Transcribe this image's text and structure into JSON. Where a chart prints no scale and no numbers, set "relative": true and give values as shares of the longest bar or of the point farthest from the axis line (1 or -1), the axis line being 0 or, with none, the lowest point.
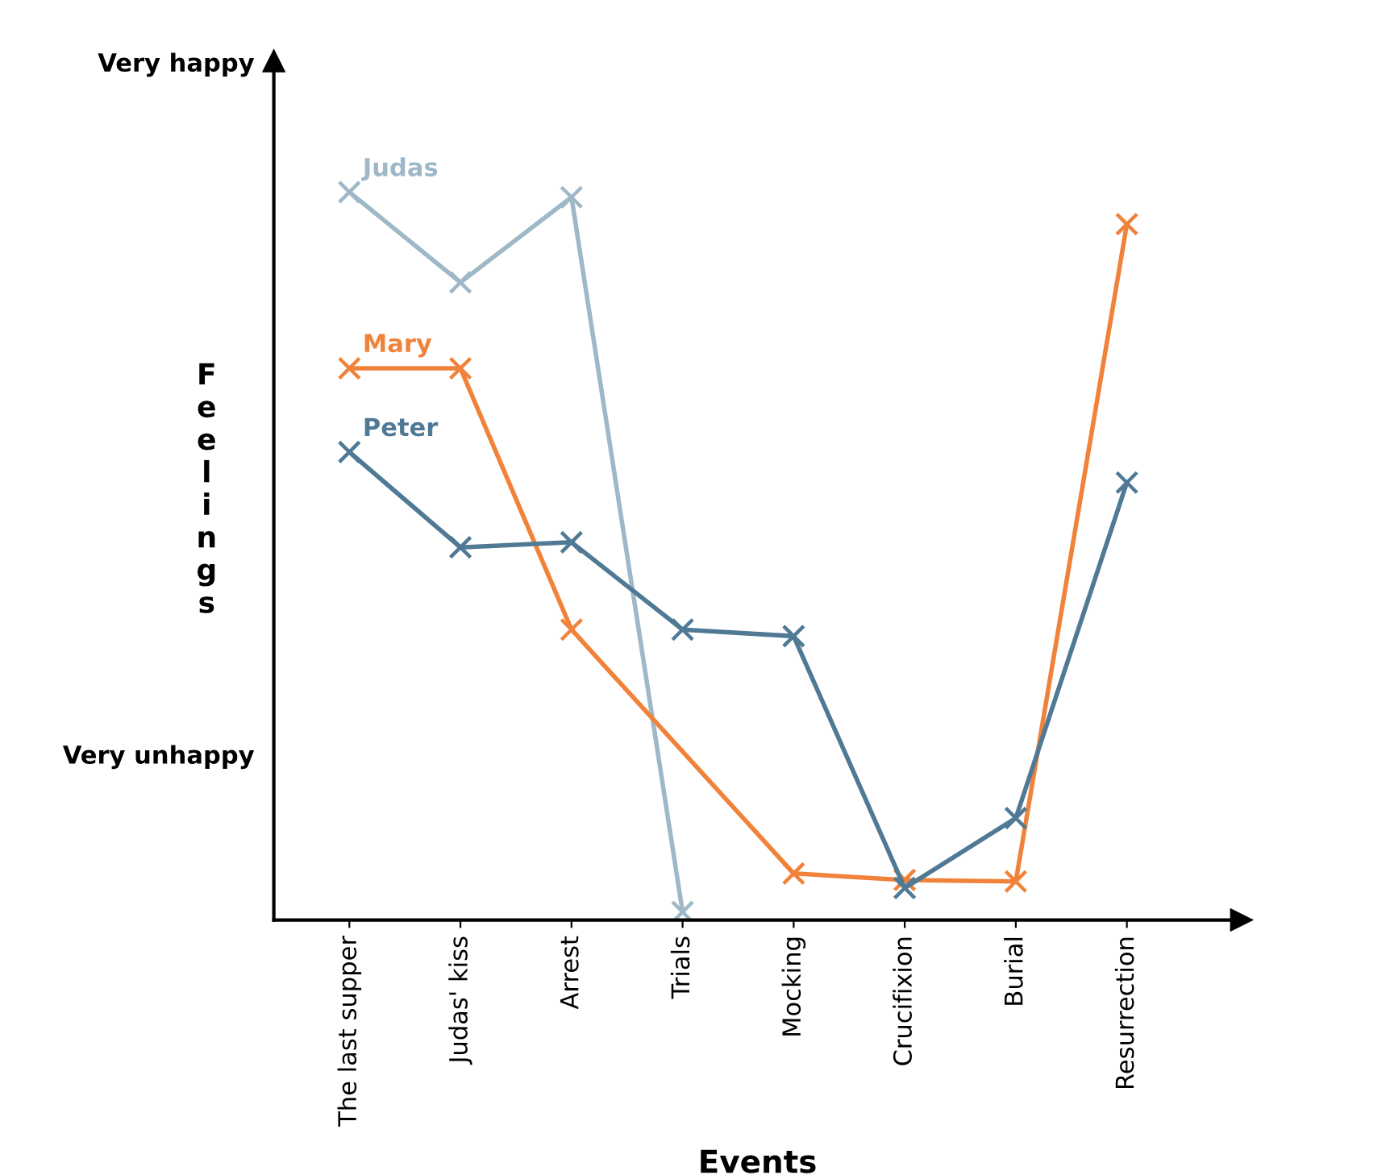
{
  "chart_data": {
    "type": "line",
    "relative": true,
    "xlabel": "Events",
    "ylabel": "Feelings",
    "categories": [
      "The last supper",
      "Judas' kiss",
      "Arrest",
      "Trials",
      "Mocking",
      "Crucifixion",
      "Burial",
      "Resurrection"
    ],
    "series": [
      {
        "name": "Judas",
        "color": "#9fb8c8",
        "values": [
          1,
          0.876,
          0.993,
          0.011,
          null,
          null,
          null,
          null
        ]
      },
      {
        "name": "Mary",
        "color": "#f0823a",
        "values": [
          0.758,
          0.758,
          0.399,
          null,
          0.064,
          0.055,
          0.053,
          0.956
        ]
      },
      {
        "name": "Peter",
        "color": "#4f7995",
        "values": [
          0.643,
          0.512,
          0.519,
          0.399,
          0.39,
          0.044,
          0.14,
          0.601
        ]
      }
    ],
    "annotations": [
      "Very happy",
      "Very unhappy"
    ],
    "marker": "cross",
    "line_style": "solid",
    "legend": false,
    "grid": false
  }
}
